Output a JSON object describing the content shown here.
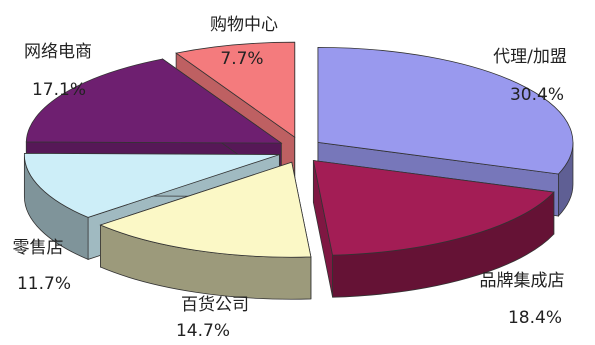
{
  "chart_data": {
    "type": "pie",
    "style": "3d-exploded",
    "title": "",
    "slices": [
      {
        "label": "代理/加盟",
        "value": 30.4,
        "value_text": "30.4%",
        "color": "#9999ee"
      },
      {
        "label": "品牌集成店",
        "value": 18.4,
        "value_text": "18.4%",
        "color": "#a31d55"
      },
      {
        "label": "百货公司",
        "value": 14.7,
        "value_text": "14.7%",
        "color": "#fbf8c6"
      },
      {
        "label": "零售店",
        "value": 11.7,
        "value_text": "11.7%",
        "color": "#cdeef8"
      },
      {
        "label": "网络电商",
        "value": 17.1,
        "value_text": "17.1%",
        "color": "#6e1f70"
      },
      {
        "label": "购物中心",
        "value": 7.7,
        "value_text": "7.7%",
        "color": "#f47b7d"
      }
    ]
  }
}
